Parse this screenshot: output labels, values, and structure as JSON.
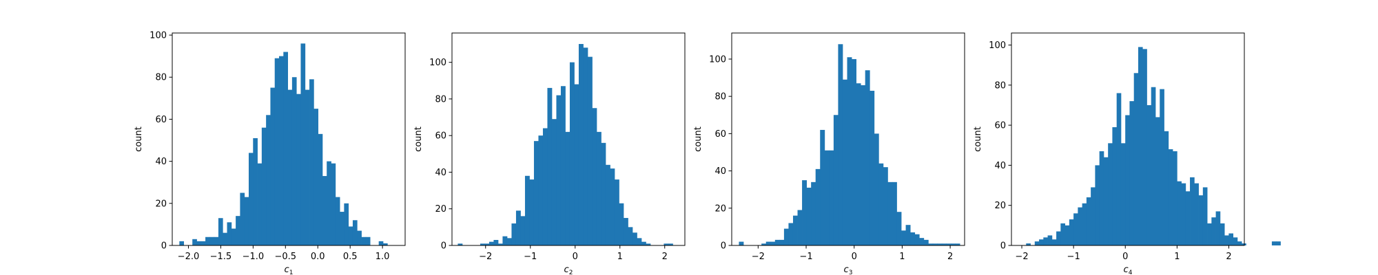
{
  "colors": {
    "bar": "#1f77b4",
    "axes": "#000000",
    "background": "#ffffff"
  },
  "chart_data": [
    {
      "type": "bar",
      "subtype": "histogram",
      "xlabel": {
        "base": "c",
        "sub": "1"
      },
      "ylabel": "count",
      "xlim": [
        -2.25,
        1.35
      ],
      "ylim": [
        0,
        101
      ],
      "xticks": [
        -2.0,
        -1.5,
        -1.0,
        -0.5,
        0.0,
        0.5,
        1.0
      ],
      "xtick_labels": [
        "−2.0",
        "−1.5",
        "−1.0",
        "−0.5",
        "0.0",
        "0.5",
        "1.0"
      ],
      "yticks": [
        0,
        20,
        40,
        60,
        80,
        100
      ],
      "ytick_labels": [
        "0",
        "20",
        "40",
        "60",
        "80",
        "100"
      ],
      "grid": false,
      "bin_start": -2.14,
      "bin_width": 0.067,
      "counts": [
        2,
        0,
        0,
        3,
        2,
        2,
        4,
        4,
        4,
        13,
        6,
        11,
        8,
        14,
        25,
        23,
        44,
        51,
        39,
        56,
        62,
        75,
        89,
        90,
        92,
        74,
        80,
        72,
        96,
        74,
        79,
        65,
        53,
        33,
        40,
        39,
        23,
        16,
        20,
        9,
        12,
        7,
        4,
        4,
        0,
        0,
        2,
        1
      ]
    },
    {
      "type": "bar",
      "subtype": "histogram",
      "xlabel": {
        "base": "c",
        "sub": "2"
      },
      "ylabel": "count",
      "xlim": [
        -2.75,
        2.45
      ],
      "ylim": [
        0,
        116
      ],
      "xticks": [
        -2,
        -1,
        0,
        1,
        2
      ],
      "xtick_labels": [
        "−2",
        "−1",
        "0",
        "1",
        "2"
      ],
      "yticks": [
        0,
        20,
        40,
        60,
        80,
        100
      ],
      "ytick_labels": [
        "0",
        "20",
        "40",
        "60",
        "80",
        "100"
      ],
      "grid": false,
      "bin_start": -2.62,
      "bin_width": 0.1,
      "counts": [
        1,
        0,
        0,
        0,
        0,
        1,
        1,
        2,
        3,
        1,
        5,
        4,
        12,
        19,
        16,
        38,
        36,
        57,
        60,
        64,
        86,
        69,
        82,
        87,
        62,
        100,
        88,
        110,
        108,
        103,
        75,
        62,
        56,
        44,
        42,
        36,
        23,
        15,
        10,
        7,
        4,
        2,
        1,
        0,
        0,
        0,
        1,
        1
      ]
    },
    {
      "type": "bar",
      "subtype": "histogram",
      "xlabel": {
        "base": "c",
        "sub": "3"
      },
      "ylabel": "count",
      "xlim": [
        -2.55,
        2.3
      ],
      "ylim": [
        0,
        114
      ],
      "xticks": [
        -2,
        -1,
        0,
        1,
        2
      ],
      "xtick_labels": [
        "−2",
        "−1",
        "0",
        "1",
        "2"
      ],
      "yticks": [
        0,
        20,
        40,
        60,
        80,
        100
      ],
      "ytick_labels": [
        "0",
        "20",
        "40",
        "60",
        "80",
        "100"
      ],
      "grid": false,
      "bin_start": -2.4,
      "bin_width": 0.0939,
      "counts": [
        2,
        0,
        0,
        0,
        0,
        1,
        2,
        2,
        3,
        3,
        9,
        12,
        16,
        19,
        35,
        31,
        34,
        41,
        62,
        51,
        51,
        70,
        108,
        89,
        101,
        100,
        87,
        86,
        94,
        83,
        60,
        44,
        42,
        34,
        34,
        18,
        8,
        11,
        7,
        6,
        4,
        3,
        1,
        1,
        1,
        1,
        1,
        1,
        1
      ]
    },
    {
      "type": "bar",
      "subtype": "histogram",
      "xlabel": {
        "base": "c",
        "sub": "4"
      },
      "ylabel": "count",
      "xlim": [
        -2.2,
        2.3
      ],
      "ylim": [
        0,
        106
      ],
      "xticks": [
        -2,
        -1,
        0,
        1,
        2
      ],
      "xtick_labels": [
        "−2",
        "−1",
        "0",
        "1",
        "2"
      ],
      "yticks": [
        0,
        20,
        40,
        60,
        80,
        100
      ],
      "ytick_labels": [
        "0",
        "20",
        "40",
        "60",
        "80",
        "100"
      ],
      "grid": false,
      "bin_start": -2.0,
      "bin_width": 0.0833,
      "counts": [
        0,
        1,
        0,
        2,
        3,
        4,
        5,
        3,
        7,
        11,
        10,
        13,
        16,
        19,
        21,
        24,
        29,
        40,
        47,
        44,
        51,
        59,
        76,
        51,
        65,
        72,
        86,
        99,
        98,
        70,
        79,
        64,
        78,
        57,
        48,
        47,
        32,
        31,
        27,
        34,
        31,
        25,
        29,
        11,
        14,
        17,
        11,
        5,
        6,
        4,
        2,
        1,
        0,
        0,
        0,
        0,
        0,
        0,
        2,
        2
      ]
    }
  ]
}
